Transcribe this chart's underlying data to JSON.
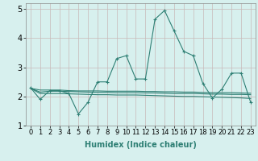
{
  "xlabel": "Humidex (Indice chaleur)",
  "x": [
    0,
    1,
    2,
    3,
    4,
    5,
    6,
    7,
    8,
    9,
    10,
    11,
    12,
    13,
    14,
    15,
    16,
    17,
    18,
    19,
    20,
    21,
    22,
    23
  ],
  "line1": [
    2.3,
    1.9,
    2.2,
    2.2,
    2.1,
    1.4,
    1.8,
    2.5,
    2.5,
    3.3,
    3.4,
    2.6,
    2.6,
    4.65,
    4.95,
    4.25,
    3.55,
    3.4,
    2.45,
    1.95,
    2.25,
    2.8,
    2.8,
    1.8
  ],
  "line2": [
    2.28,
    2.15,
    2.18,
    2.18,
    2.17,
    2.16,
    2.15,
    2.14,
    2.14,
    2.13,
    2.13,
    2.13,
    2.12,
    2.12,
    2.11,
    2.1,
    2.1,
    2.1,
    2.09,
    2.08,
    2.08,
    2.07,
    2.07,
    2.06
  ],
  "line3": [
    2.28,
    2.1,
    2.1,
    2.1,
    2.09,
    2.08,
    2.07,
    2.06,
    2.06,
    2.05,
    2.05,
    2.05,
    2.04,
    2.03,
    2.02,
    2.01,
    2.0,
    2.0,
    1.99,
    1.98,
    1.97,
    1.96,
    1.95,
    1.93
  ],
  "line4": [
    2.28,
    2.22,
    2.22,
    2.22,
    2.2,
    2.19,
    2.19,
    2.19,
    2.18,
    2.18,
    2.18,
    2.18,
    2.17,
    2.17,
    2.16,
    2.16,
    2.15,
    2.15,
    2.14,
    2.13,
    2.13,
    2.13,
    2.12,
    2.11
  ],
  "line_color": "#2e7f74",
  "bg_color": "#d7f0ee",
  "grid_color": "#c8b8b8",
  "ylim": [
    1.0,
    5.2
  ],
  "yticks": [
    1,
    2,
    3,
    4,
    5
  ],
  "xlim": [
    -0.5,
    23.5
  ],
  "tick_fontsize": 6,
  "xlabel_fontsize": 7
}
